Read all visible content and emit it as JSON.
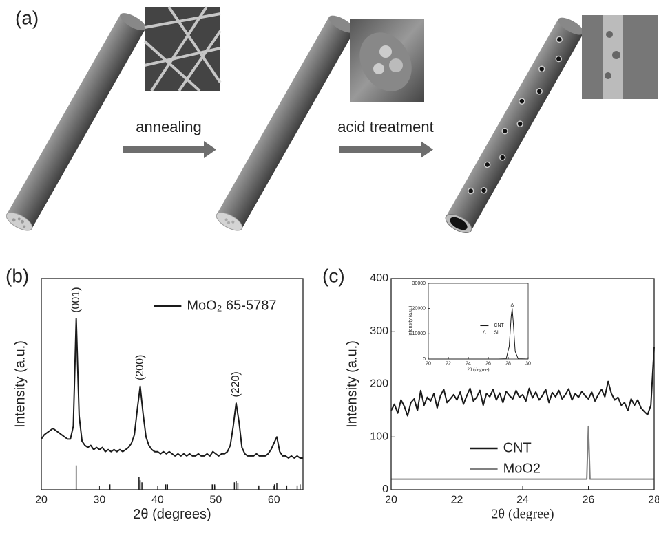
{
  "panel_labels": [
    "(a)",
    "(b)",
    "(c)"
  ],
  "diagram": {
    "steps": [
      "annealing",
      "acid treatment"
    ]
  },
  "chart_data": [
    {
      "type": "line",
      "xlabel": "2θ (degrees)",
      "ylabel": "Intensity (a.u.)",
      "xlim": [
        20,
        65
      ],
      "xticks": [
        20,
        30,
        40,
        50,
        60
      ],
      "ylim": [
        0,
        100
      ],
      "legend": "upper right",
      "series": [
        {
          "color": "#1a1a1a",
          "x": [
            20,
            20.5,
            21,
            21.5,
            22,
            22.5,
            23,
            23.5,
            24,
            24.5,
            25,
            25.5,
            26,
            26.5,
            27,
            27.5,
            28,
            28.5,
            29,
            29.5,
            30,
            30.5,
            31,
            31.5,
            32,
            32.5,
            33,
            33.5,
            34,
            34.5,
            35,
            35.5,
            36,
            36.5,
            37,
            37.5,
            38,
            38.5,
            39,
            39.5,
            40,
            40.5,
            41,
            41.5,
            42,
            42.5,
            43,
            43.5,
            44,
            44.5,
            45,
            45.5,
            46,
            46.5,
            47,
            47.5,
            48,
            48.5,
            49,
            49.5,
            50,
            50.5,
            51,
            51.5,
            52,
            52.5,
            53,
            53.5,
            54,
            54.5,
            55,
            55.5,
            56,
            56.5,
            57,
            57.5,
            58,
            58.5,
            59,
            59.5,
            60,
            60.5,
            61,
            61.5,
            62,
            62.5,
            63,
            63.5,
            64,
            64.5,
            65
          ],
          "values": [
            24,
            26,
            27,
            28,
            29,
            28,
            27,
            26,
            25,
            24,
            24,
            30,
            81,
            35,
            23,
            21,
            20,
            21,
            19,
            20,
            19,
            20,
            18,
            19,
            18,
            19,
            18,
            19,
            18,
            19,
            20,
            22,
            26,
            38,
            49,
            36,
            25,
            21,
            19,
            18,
            18,
            17,
            18,
            17,
            18,
            17,
            16,
            17,
            16,
            17,
            16,
            17,
            16,
            16,
            17,
            16,
            16,
            17,
            16,
            18,
            17,
            16,
            17,
            17,
            18,
            21,
            30,
            41,
            32,
            20,
            17,
            16,
            16,
            16,
            17,
            16,
            16,
            16,
            17,
            19,
            22,
            25,
            18,
            16,
            16,
            15,
            16,
            15,
            16,
            15,
            15
          ]
        },
        {
          "name": "MoO₂ 65-5787",
          "color": "#1a1a1a",
          "mode": "stick",
          "x": [
            26.0,
            31.8,
            36.8,
            37.0,
            37.3,
            41.4,
            41.7,
            49.4,
            49.8,
            53.2,
            53.5,
            53.8,
            57.4,
            60.1,
            60.5,
            62.2,
            64.0,
            64.5
          ],
          "values": [
            11.5,
            2.5,
            6,
            4.5,
            3.5,
            2.5,
            2.5,
            2.5,
            2.5,
            3.5,
            4,
            3,
            2,
            2.5,
            3,
            2,
            2,
            2.5
          ]
        }
      ],
      "annotations": [
        {
          "text": "(001)",
          "x": 26
        },
        {
          "text": "(200)",
          "x": 37
        },
        {
          "text": "(220)",
          "x": 53.5
        }
      ]
    },
    {
      "type": "line",
      "xlabel": "2θ (degree)",
      "ylabel": "Intensity (a.u.)",
      "xlim": [
        20,
        28
      ],
      "xticks": [
        20,
        22,
        24,
        26,
        28
      ],
      "ylim": [
        0,
        400
      ],
      "yticks": [
        0,
        100,
        200,
        300,
        400
      ],
      "legend": "lower right",
      "series": [
        {
          "name": "CNT",
          "color": "#1a1a1a",
          "x": [
            20,
            20.1,
            20.2,
            20.3,
            20.4,
            20.5,
            20.6,
            20.7,
            20.8,
            20.9,
            21,
            21.1,
            21.2,
            21.3,
            21.4,
            21.5,
            21.6,
            21.7,
            21.8,
            21.9,
            22,
            22.1,
            22.2,
            22.3,
            22.4,
            22.5,
            22.6,
            22.7,
            22.8,
            22.9,
            23,
            23.1,
            23.2,
            23.3,
            23.4,
            23.5,
            23.6,
            23.7,
            23.8,
            23.9,
            24,
            24.1,
            24.2,
            24.3,
            24.4,
            24.5,
            24.6,
            24.7,
            24.8,
            24.9,
            25,
            25.1,
            25.2,
            25.3,
            25.4,
            25.5,
            25.6,
            25.7,
            25.8,
            25.9,
            26,
            26.1,
            26.2,
            26.3,
            26.4,
            26.5,
            26.6,
            26.7,
            26.8,
            26.9,
            27,
            27.1,
            27.2,
            27.3,
            27.4,
            27.5,
            27.6,
            27.7,
            27.8,
            27.9,
            28
          ],
          "values": [
            150,
            162,
            145,
            170,
            158,
            140,
            165,
            172,
            150,
            188,
            160,
            175,
            168,
            182,
            155,
            178,
            190,
            165,
            172,
            180,
            170,
            185,
            162,
            178,
            192,
            168,
            175,
            188,
            160,
            182,
            176,
            190,
            170,
            183,
            165,
            186,
            178,
            172,
            188,
            175,
            180,
            168,
            192,
            174,
            185,
            170,
            178,
            190,
            165,
            184,
            176,
            188,
            172,
            180,
            191,
            170,
            182,
            175,
            186,
            178,
            172,
            185,
            168,
            180,
            190,
            176,
            205,
            182,
            170,
            175,
            160,
            165,
            150,
            172,
            160,
            170,
            155,
            148,
            142,
            160,
            270
          ]
        },
        {
          "name": "MoO2",
          "color": "#808080",
          "x": [
            20,
            25.95,
            26,
            26.05,
            28
          ],
          "values": [
            20,
            20,
            120,
            20,
            20
          ]
        }
      ]
    },
    {
      "type": "line",
      "xlabel": "2θ (degree)",
      "ylabel": "Intensity (a.u.)",
      "xlim": [
        20,
        30
      ],
      "xticks": [
        20,
        22,
        24,
        26,
        28,
        30
      ],
      "ylim": [
        0,
        30000
      ],
      "yticks": [
        0,
        10000,
        20000,
        30000
      ],
      "legend": "center right",
      "series": [
        {
          "name": "CNT",
          "color": "#1a1a1a",
          "x": [
            20,
            27,
            27.8,
            28.1,
            28.3,
            28.4,
            28.5,
            28.7,
            29,
            30
          ],
          "values": [
            0,
            0,
            100,
            5000,
            17000,
            20000,
            15000,
            3000,
            100,
            0
          ]
        }
      ],
      "legend_markers": [
        {
          "symbol": "Δ",
          "label": "Si"
        }
      ],
      "annotations": [
        {
          "text": "Δ",
          "x": 28.4
        }
      ]
    }
  ]
}
